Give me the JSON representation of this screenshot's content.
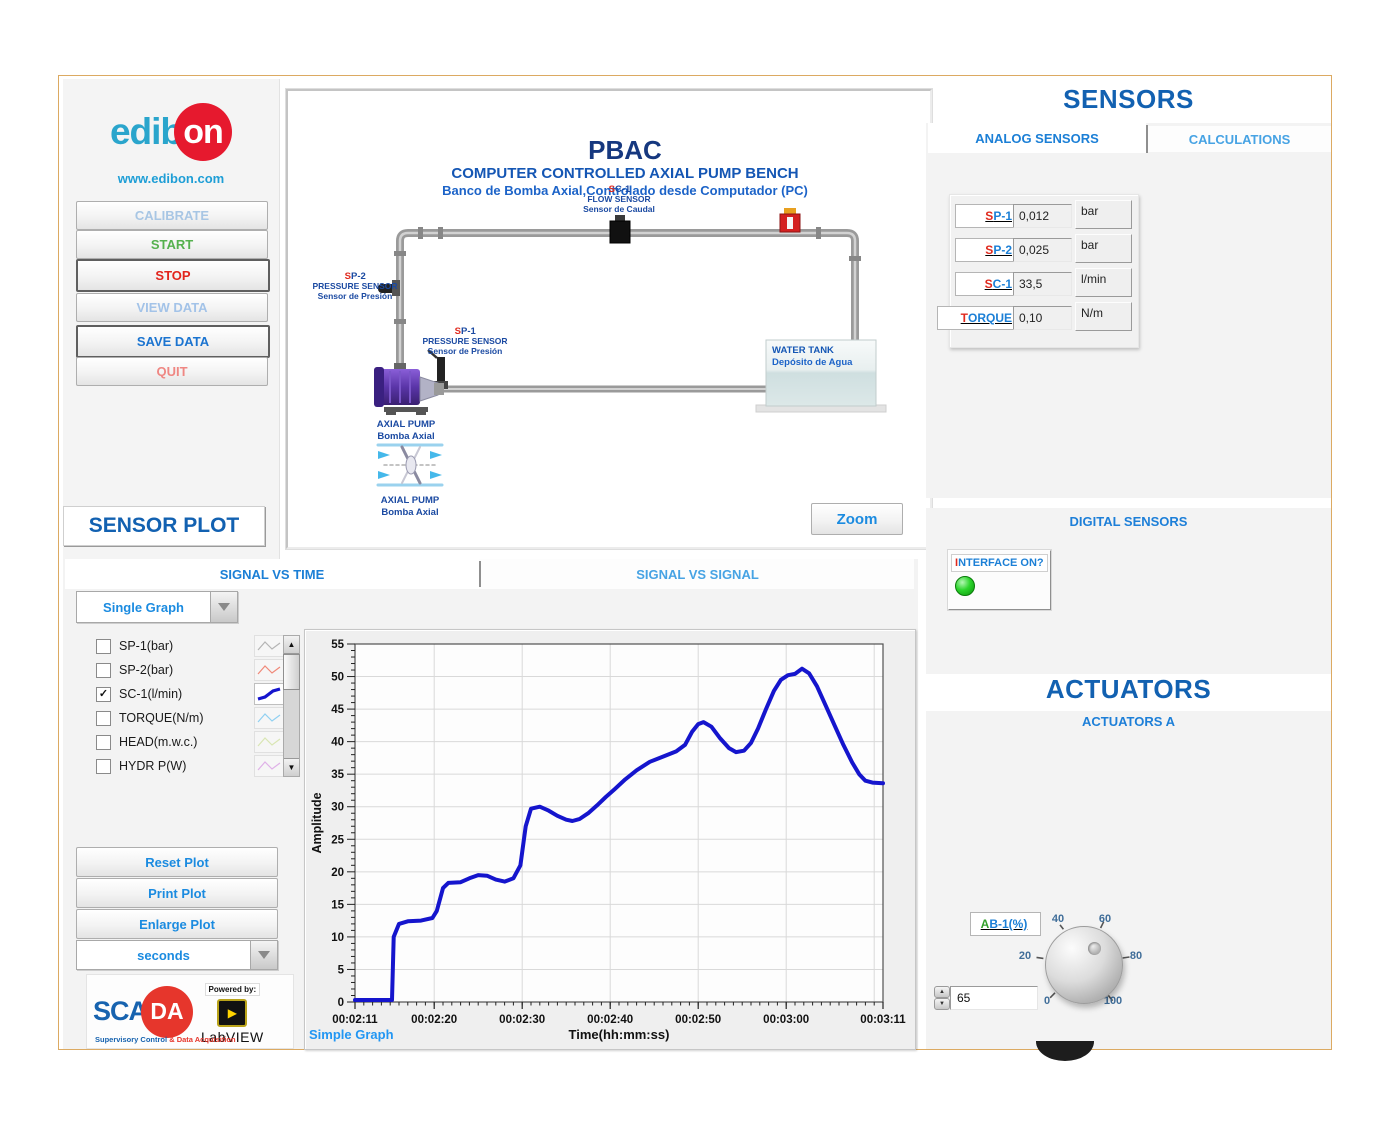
{
  "branding": {
    "edib": "edib",
    "on": "on",
    "website": "www.edibon.com"
  },
  "sidebar": {
    "calibrate": "CALIBRATE",
    "start": "START",
    "stop": "STOP",
    "view_data": "VIEW DATA",
    "save_data": "SAVE DATA",
    "quit": "QUIT"
  },
  "diagram": {
    "title": "PBAC",
    "subtitle": "COMPUTER CONTROLLED AXIAL PUMP BENCH",
    "subtitle_es": "Banco de Bomba Axial,Controlado desde Computador (PC)",
    "flow_sensor": {
      "prefix": "S",
      "rest": "C-1",
      "line1": "FLOW SENSOR",
      "line2": "Sensor de Caudal"
    },
    "pressure_sensor_2": {
      "prefix": "S",
      "rest": "P-2",
      "line1": "PRESSURE SENSOR",
      "line2": "Sensor de Presión"
    },
    "pressure_sensor_1": {
      "prefix": "S",
      "rest": "P-1",
      "line1": "PRESSURE SENSOR",
      "line2": "Sensor de Presión"
    },
    "axial_pump": {
      "line1": "AXIAL PUMP",
      "line2": "Bomba Axial"
    },
    "axial_pump_schematic": {
      "line1": "AXIAL PUMP",
      "line2": "Bomba Axial"
    },
    "water_tank": {
      "line1": "WATER TANK",
      "line2": "Depósito de Agua"
    },
    "zoom": "Zoom"
  },
  "sensors": {
    "title": "SENSORS",
    "tab_analog": "ANALOG SENSORS",
    "tab_calculations": "CALCULATIONS",
    "analog": [
      {
        "prefix": "S",
        "rest": "P-1",
        "value": "0,012",
        "unit": "bar"
      },
      {
        "prefix": "S",
        "rest": "P-2",
        "value": "0,025",
        "unit": "bar"
      },
      {
        "prefix": "S",
        "rest": "C-1",
        "value": "33,5",
        "unit": "l/min"
      },
      {
        "prefix": "T",
        "rest": "ORQUE",
        "value": "0,10",
        "unit": "N/m"
      }
    ],
    "digital_header": "DIGITAL SENSORS",
    "interface": {
      "prefix": "I",
      "rest": "NTERFACE ON?",
      "led_color": "#2cd52c"
    }
  },
  "actuators": {
    "title": "ACTUATORS",
    "subtitle": "ACTUATORS A",
    "ab1": {
      "prefix": "A",
      "rest": "B-1(%)",
      "value": "65",
      "ticks": [
        "0",
        "20",
        "40",
        "60",
        "80",
        "100"
      ]
    }
  },
  "plot": {
    "title": "SENSOR PLOT",
    "tab_time": "SIGNAL VS TIME",
    "tab_signal": "SIGNAL VS SIGNAL",
    "graph_mode": "Single Graph",
    "signals": [
      {
        "label": "SP-1(bar)",
        "check": "",
        "checked": false,
        "color": "#b4b4b4"
      },
      {
        "label": "SP-2(bar)",
        "check": "",
        "checked": false,
        "color": "#f08878"
      },
      {
        "label": "SC-1(l/min)",
        "check": "✓",
        "checked": true,
        "color": "#1515cd"
      },
      {
        "label": "TORQUE(N/m)",
        "check": "",
        "checked": false,
        "color": "#8fd0f2"
      },
      {
        "label": "HEAD(m.w.c.)",
        "check": "",
        "checked": false,
        "color": "#d9e6b3"
      },
      {
        "label": "HYDR P(W)",
        "check": "",
        "checked": false,
        "color": "#dfb0e8"
      }
    ],
    "reset": "Reset Plot",
    "print": "Print Plot",
    "enlarge": "Enlarge Plot",
    "time_unit": "seconds",
    "graph_name": "Simple Graph"
  },
  "scada": {
    "sca": "SCA",
    "da": "DA",
    "sub_blue": "Supervisory Control",
    "sub_red": " & Data Acquisition",
    "powered_by": "Powered by:",
    "labview_arrow": "▶",
    "labview": "LabVIEW"
  },
  "chart_data": {
    "type": "line",
    "title": "",
    "xlabel": "Time(hh:mm:ss)",
    "ylabel": "Amplitude",
    "ylim": [
      0,
      55
    ],
    "ytick_step": 5,
    "grid": true,
    "x_start_seconds": 131,
    "x_end_seconds": 191,
    "xtick_labels": [
      "00:02:11",
      "00:02:20",
      "00:02:30",
      "00:02:40",
      "00:02:50",
      "00:03:00",
      "00:03:11"
    ],
    "xtick_seconds": [
      131,
      140,
      150,
      160,
      170,
      180,
      191
    ],
    "xgrid_seconds": [
      140,
      150,
      160,
      170,
      180,
      190
    ],
    "series": [
      {
        "name": "SC-1(l/min)",
        "color": "#1515cd",
        "points": [
          [
            131,
            0.3
          ],
          [
            135.2,
            0.3
          ],
          [
            135.4,
            10
          ],
          [
            136,
            12
          ],
          [
            137,
            12.4
          ],
          [
            138.5,
            12.5
          ],
          [
            139.8,
            12.9
          ],
          [
            140.3,
            14
          ],
          [
            141,
            17.5
          ],
          [
            141.6,
            18.3
          ],
          [
            143,
            18.4
          ],
          [
            144,
            19
          ],
          [
            145,
            19.5
          ],
          [
            146,
            19.4
          ],
          [
            147,
            18.8
          ],
          [
            148,
            18.5
          ],
          [
            149,
            19
          ],
          [
            149.8,
            21
          ],
          [
            150.4,
            27
          ],
          [
            151,
            29.7
          ],
          [
            152,
            30
          ],
          [
            153,
            29.4
          ],
          [
            154,
            28.6
          ],
          [
            155,
            28
          ],
          [
            155.7,
            27.8
          ],
          [
            156.5,
            28.1
          ],
          [
            157.5,
            29
          ],
          [
            158.5,
            30.2
          ],
          [
            159.5,
            31.5
          ],
          [
            160.5,
            32.7
          ],
          [
            161.7,
            34.2
          ],
          [
            163,
            35.6
          ],
          [
            164.5,
            36.9
          ],
          [
            166,
            37.7
          ],
          [
            167.5,
            38.5
          ],
          [
            168.5,
            39.5
          ],
          [
            169.3,
            41.5
          ],
          [
            170,
            42.7
          ],
          [
            170.6,
            43
          ],
          [
            171.5,
            42.3
          ],
          [
            172.5,
            40.5
          ],
          [
            173.5,
            39
          ],
          [
            174.3,
            38.4
          ],
          [
            175.2,
            38.6
          ],
          [
            176,
            39.8
          ],
          [
            176.8,
            42
          ],
          [
            177.7,
            45
          ],
          [
            178.6,
            47.8
          ],
          [
            179.4,
            49.5
          ],
          [
            180.2,
            50.2
          ],
          [
            181,
            50.4
          ],
          [
            181.8,
            51.2
          ],
          [
            182.6,
            50.5
          ],
          [
            183.5,
            48.5
          ],
          [
            184.5,
            45.5
          ],
          [
            185.5,
            42.5
          ],
          [
            186.5,
            39.5
          ],
          [
            187.5,
            36.8
          ],
          [
            188.3,
            35
          ],
          [
            189,
            34
          ],
          [
            189.8,
            33.7
          ],
          [
            191,
            33.6
          ]
        ]
      }
    ]
  }
}
